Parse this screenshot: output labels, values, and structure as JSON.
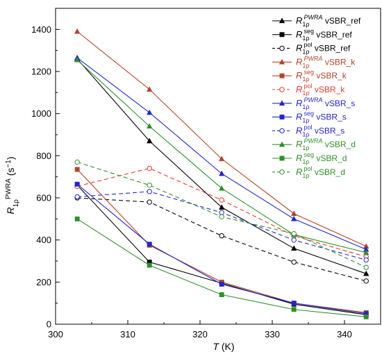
{
  "chart_data": {
    "type": "line",
    "x": [
      303,
      313,
      323,
      333,
      343
    ],
    "xlim": [
      300,
      345
    ],
    "ylim": [
      0,
      1500
    ],
    "xticks": [
      300,
      310,
      320,
      330,
      340
    ],
    "yticks": [
      0,
      200,
      400,
      600,
      800,
      1000,
      1200,
      1400
    ],
    "xlabel": {
      "var": "T",
      "unit": " (K)"
    },
    "ylabel": {
      "var": "R",
      "sub": "1ρ",
      "sup": "PWRA",
      "unit": " (s",
      "unit_sup": "−1",
      "unit_end": ")"
    },
    "grid": false,
    "legend_position": "top-right",
    "series": [
      {
        "name": {
          "sub": "1ρ",
          "sup": "PWRA",
          "suffix": " vSBR_ref"
        },
        "color": "#000000",
        "marker": "triangle",
        "dashed": false,
        "values": [
          1260,
          870,
          555,
          360,
          240
        ]
      },
      {
        "name": {
          "sub": "1ρ",
          "sup": "seg",
          "suffix": " vSBR_ref"
        },
        "color": "#000000",
        "marker": "square",
        "dashed": false,
        "values": [
          660,
          295,
          195,
          95,
          45
        ]
      },
      {
        "name": {
          "sub": "1ρ",
          "sup": "pol",
          "suffix": " vSBR_ref"
        },
        "color": "#000000",
        "marker": "circle-open",
        "dashed": true,
        "values": [
          600,
          580,
          420,
          295,
          205
        ]
      },
      {
        "name": {
          "sub": "1ρ",
          "sup": "PWRA",
          "suffix": " vSBR_k"
        },
        "color": "#b5442a",
        "marker": "triangle",
        "dashed": false,
        "values": [
          1390,
          1115,
          785,
          525,
          370
        ]
      },
      {
        "name": {
          "sub": "1ρ",
          "sup": "seg",
          "suffix": " vSBR_k"
        },
        "color": "#b5442a",
        "marker": "square",
        "dashed": false,
        "values": [
          735,
          375,
          200,
          100,
          55
        ]
      },
      {
        "name": {
          "sub": "1ρ",
          "sup": "pol",
          "suffix": " vSBR_k"
        },
        "color": "#e03b2c",
        "marker": "circle-open",
        "dashed": true,
        "values": [
          655,
          740,
          590,
          420,
          320
        ]
      },
      {
        "name": {
          "sub": "1ρ",
          "sup": "PWRA",
          "suffix": " vSBR_s"
        },
        "color": "#2426c8",
        "marker": "triangle",
        "dashed": false,
        "values": [
          1265,
          1005,
          715,
          500,
          355
        ]
      },
      {
        "name": {
          "sub": "1ρ",
          "sup": "seg",
          "suffix": " vSBR_s"
        },
        "color": "#2426c8",
        "marker": "square",
        "dashed": false,
        "values": [
          665,
          380,
          190,
          100,
          50
        ]
      },
      {
        "name": {
          "sub": "1ρ",
          "sup": "pol",
          "suffix": " vSBR_s"
        },
        "color": "#2426c8",
        "marker": "circle-open",
        "dashed": true,
        "values": [
          605,
          630,
          530,
          400,
          305
        ]
      },
      {
        "name": {
          "sub": "1ρ",
          "sup": "PWRA",
          "suffix": " vSBR_d"
        },
        "color": "#2f8f2a",
        "marker": "triangle",
        "dashed": false,
        "values": [
          1255,
          940,
          645,
          425,
          340
        ]
      },
      {
        "name": {
          "sub": "1ρ",
          "sup": "seg",
          "suffix": " vSBR_d"
        },
        "color": "#2f8f2a",
        "marker": "square",
        "dashed": false,
        "values": [
          500,
          280,
          140,
          70,
          35
        ]
      },
      {
        "name": {
          "sub": "1ρ",
          "sup": "pol",
          "suffix": " vSBR_d"
        },
        "color": "#2f8f2a",
        "marker": "circle-open",
        "dashed": true,
        "values": [
          770,
          660,
          510,
          430,
          270
        ]
      }
    ]
  }
}
